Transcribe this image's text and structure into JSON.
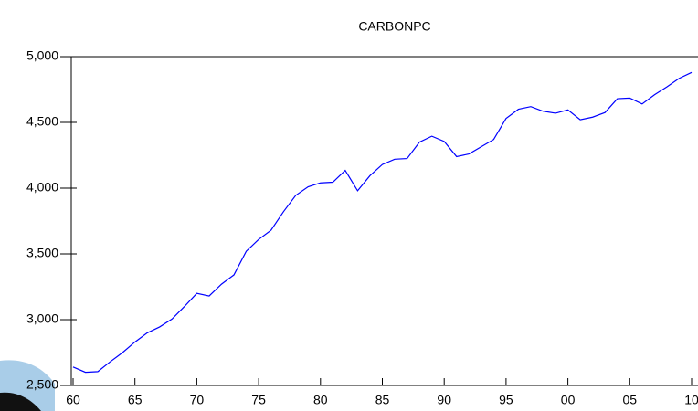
{
  "chart_data": {
    "type": "line",
    "title": "CARBONPC",
    "x": [
      1960,
      1961,
      1962,
      1963,
      1964,
      1965,
      1966,
      1967,
      1968,
      1969,
      1970,
      1971,
      1972,
      1973,
      1974,
      1975,
      1976,
      1977,
      1978,
      1979,
      1980,
      1981,
      1982,
      1983,
      1984,
      1985,
      1986,
      1987,
      1988,
      1989,
      1990,
      1991,
      1992,
      1993,
      1994,
      1995,
      1996,
      1997,
      1998,
      1999,
      2000,
      2001,
      2002,
      2003,
      2004,
      2005,
      2006,
      2007,
      2008,
      2009,
      2010
    ],
    "series": [
      {
        "name": "CARBONPC",
        "color": "#0000ff",
        "values": [
          2640,
          2600,
          2605,
          2680,
          2750,
          2830,
          2900,
          2945,
          3005,
          3100,
          3200,
          3180,
          3270,
          3340,
          3520,
          3610,
          3680,
          3820,
          3945,
          4010,
          4040,
          4045,
          4135,
          3980,
          4095,
          4180,
          4220,
          4225,
          4350,
          4395,
          4355,
          4240,
          4260,
          4315,
          4370,
          4530,
          4600,
          4620,
          4585,
          4570,
          4595,
          4520,
          4540,
          4575,
          4680,
          4685,
          4640,
          4710,
          4770,
          4835,
          4880
        ]
      }
    ],
    "xlim": [
      1960,
      2010
    ],
    "xticks": [
      {
        "value": 1960,
        "label": "60"
      },
      {
        "value": 1965,
        "label": "65"
      },
      {
        "value": 1970,
        "label": "70"
      },
      {
        "value": 1975,
        "label": "75"
      },
      {
        "value": 1980,
        "label": "80"
      },
      {
        "value": 1985,
        "label": "85"
      },
      {
        "value": 1990,
        "label": "90"
      },
      {
        "value": 1995,
        "label": "95"
      },
      {
        "value": 2000,
        "label": "00"
      },
      {
        "value": 2005,
        "label": "05"
      },
      {
        "value": 2010,
        "label": "10"
      }
    ],
    "ylim": [
      2500,
      5000
    ],
    "yticks": [
      {
        "value": 2500,
        "label": "2,500"
      },
      {
        "value": 3000,
        "label": "3,000"
      },
      {
        "value": 3500,
        "label": "3,500"
      },
      {
        "value": 4000,
        "label": "4,000"
      },
      {
        "value": 4500,
        "label": "4,500"
      },
      {
        "value": 5000,
        "label": "5,000"
      }
    ],
    "grid": false
  }
}
